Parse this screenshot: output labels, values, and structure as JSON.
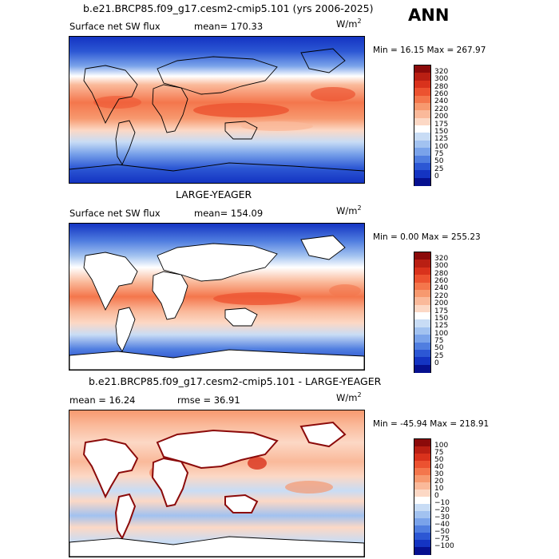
{
  "season": "ANN",
  "panels": [
    {
      "id": "top",
      "title": "b.e21.BRCP85.f09_g17.cesm2-cmip5.101 (yrs 2006-2025)",
      "variable": "Surface net SW flux",
      "stat_text": "mean= 170.33",
      "units": "W/m",
      "units_sup": "2",
      "minmax": "Min =  16.15 Max = 267.97",
      "land_masked": false,
      "colorbar": {
        "labels": [
          "320",
          "300",
          "280",
          "260",
          "240",
          "220",
          "200",
          "175",
          "150",
          "125",
          "100",
          "75",
          "50",
          "25",
          "0"
        ],
        "colors": [
          "#8b0a0a",
          "#b91f13",
          "#d9321c",
          "#ec5230",
          "#f4764c",
          "#f7996f",
          "#fab99a",
          "#fcd8c5",
          "#ffffff",
          "#c8dcf5",
          "#a2c2f0",
          "#7aa3ea",
          "#507ee0",
          "#2c57d4",
          "#1434c2",
          "#06108f"
        ]
      }
    },
    {
      "id": "middle",
      "title": "LARGE-YEAGER",
      "variable": "Surface net SW flux",
      "stat_text": "mean= 154.09",
      "units": "W/m",
      "units_sup": "2",
      "minmax": "Min =   0.00 Max = 255.23",
      "land_masked": true,
      "colorbar": {
        "labels": [
          "320",
          "300",
          "280",
          "260",
          "240",
          "220",
          "200",
          "175",
          "150",
          "125",
          "100",
          "75",
          "50",
          "25",
          "0"
        ],
        "colors": [
          "#8b0a0a",
          "#b91f13",
          "#d9321c",
          "#ec5230",
          "#f4764c",
          "#f7996f",
          "#fab99a",
          "#fcd8c5",
          "#ffffff",
          "#c8dcf5",
          "#a2c2f0",
          "#7aa3ea",
          "#507ee0",
          "#2c57d4",
          "#1434c2",
          "#06108f"
        ]
      }
    },
    {
      "id": "bottom",
      "title": "b.e21.BRCP85.f09_g17.cesm2-cmip5.101 - LARGE-YEAGER",
      "stat_text": "mean =  16.24",
      "stat2_text": "rmse =  36.91",
      "units": "W/m",
      "units_sup": "2",
      "minmax": "Min = -45.94 Max = 218.91",
      "land_masked": true,
      "colorbar": {
        "labels": [
          "100",
          "75",
          "50",
          "40",
          "30",
          "20",
          "10",
          "0",
          "−10",
          "−20",
          "−30",
          "−40",
          "−50",
          "−75",
          "−100"
        ],
        "colors": [
          "#8b0a0a",
          "#b91f13",
          "#d9321c",
          "#ec5230",
          "#f4764c",
          "#f7996f",
          "#fab99a",
          "#fcd8c5",
          "#ffffff",
          "#c8dcf5",
          "#a2c2f0",
          "#7aa3ea",
          "#507ee0",
          "#2c57d4",
          "#1434c2",
          "#06108f"
        ]
      }
    }
  ]
}
